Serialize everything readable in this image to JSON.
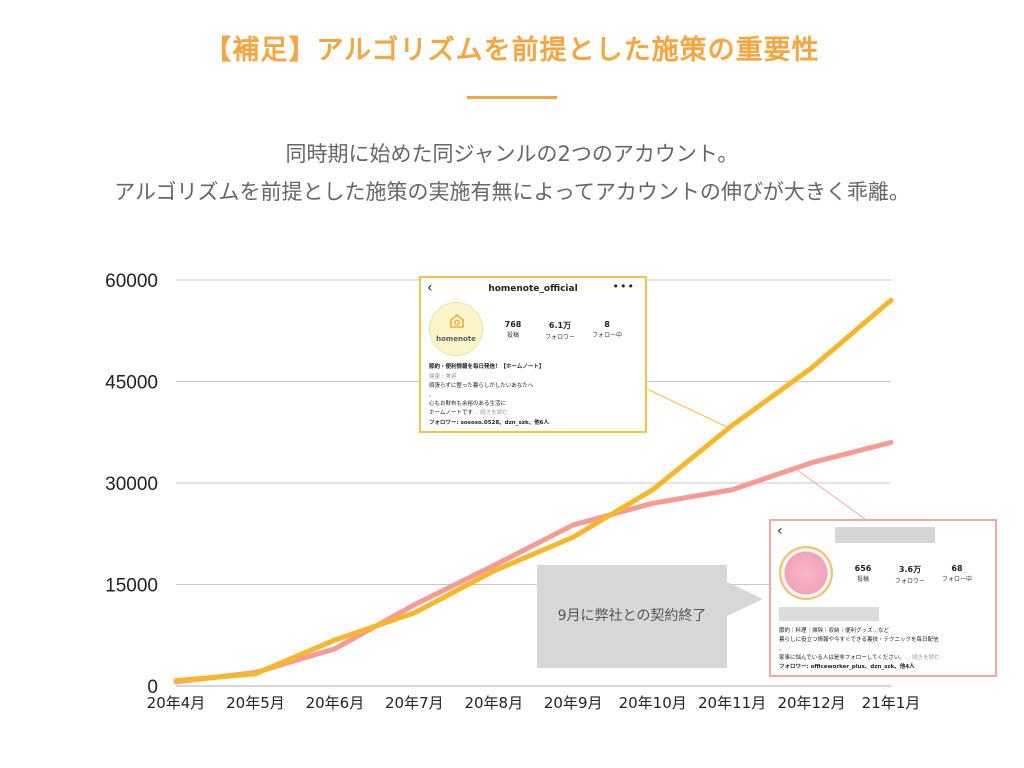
{
  "header": {
    "title": "【補足】アルゴリズムを前提とした施策の重要性",
    "subtitle_line1": "同時期に始めた同ジャンルの2つのアカウント。",
    "subtitle_line2": "アルゴリズムを前提とした施策の実施有無によってアカウントの伸びが大きく乖離。"
  },
  "colors": {
    "accent": "#f4a640",
    "series_a": "#f8b72a",
    "series_b": "#f79a94",
    "grid": "#c8c8c8"
  },
  "chart_data": {
    "type": "line",
    "categories": [
      "20年4月",
      "20年5月",
      "20年6月",
      "20年7月",
      "20年8月",
      "20年9月",
      "20年10月",
      "20年11月",
      "20年12月",
      "21年1月"
    ],
    "series": [
      {
        "values": [
          800,
          1800,
          6800,
          10800,
          17000,
          22000,
          29000,
          38500,
          47000,
          57000
        ]
      },
      {
        "values": [
          600,
          2000,
          5500,
          12000,
          17800,
          23800,
          27000,
          29000,
          33000,
          36000
        ]
      }
    ],
    "yticks": [
      "60000",
      "45000",
      "30000",
      "15000",
      "0"
    ],
    "ylim": [
      0,
      60000
    ],
    "grid": true
  },
  "card_a": {
    "handle": "homenote_official",
    "logo_text": "homenote",
    "stats": [
      {
        "value": "768",
        "label": "投稿"
      },
      {
        "value": "6.1万",
        "label": "フォロワー"
      },
      {
        "value": "8",
        "label": "フォロー中"
      }
    ],
    "bio": [
      "節約・便利情報を毎日発信！【ホームノート】",
      "健康・美容",
      "頑張らずに整った暮らしがしたいあなたへ",
      "、",
      "心もお財布も余裕のある生活に",
      "ホームノートです",
      "フォロワー: sososo.0528、dzn_szk、他6人"
    ],
    "more": "… 続きを読む"
  },
  "card_b": {
    "stats": [
      {
        "value": "656",
        "label": "投稿"
      },
      {
        "value": "3.6万",
        "label": "フォロワー"
      },
      {
        "value": "68",
        "label": "フォロー中"
      }
    ],
    "bio": [
      "節約｜料理｜掃除｜収納｜便利グッズ…など",
      "暮らしに役立つ情報や今すぐできる裏技・テクニックを毎日配信",
      "、",
      "家事に悩んでいる人は是非フォローしてください。",
      "フォロワー: officeworker_plus、dzn_szk、他4人"
    ],
    "more": "… 続きを読む"
  },
  "callout": {
    "text": "9月に弊社との契約終了"
  }
}
